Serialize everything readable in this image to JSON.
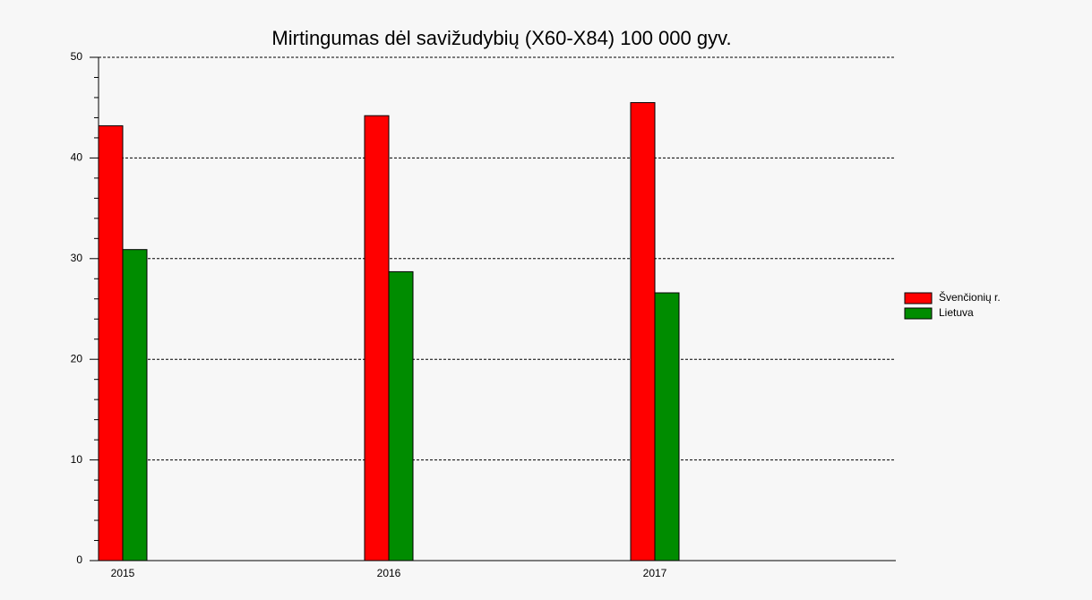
{
  "chart_data": {
    "type": "bar",
    "title": "Mirtingumas dėl savižudybių (X60-X84) 100 000 gyv.",
    "categories": [
      "2015",
      "2016",
      "2017"
    ],
    "series": [
      {
        "name": "Švenčionių r.",
        "color": "#ff0000",
        "values": [
          43.2,
          44.2,
          45.5
        ]
      },
      {
        "name": "Lietuva",
        "color": "#008c00",
        "values": [
          30.9,
          28.7,
          26.6
        ]
      }
    ],
    "ylim": [
      0,
      50
    ],
    "yticks": [
      0,
      10,
      20,
      30,
      40,
      50
    ],
    "grid": true,
    "legend": "right"
  }
}
